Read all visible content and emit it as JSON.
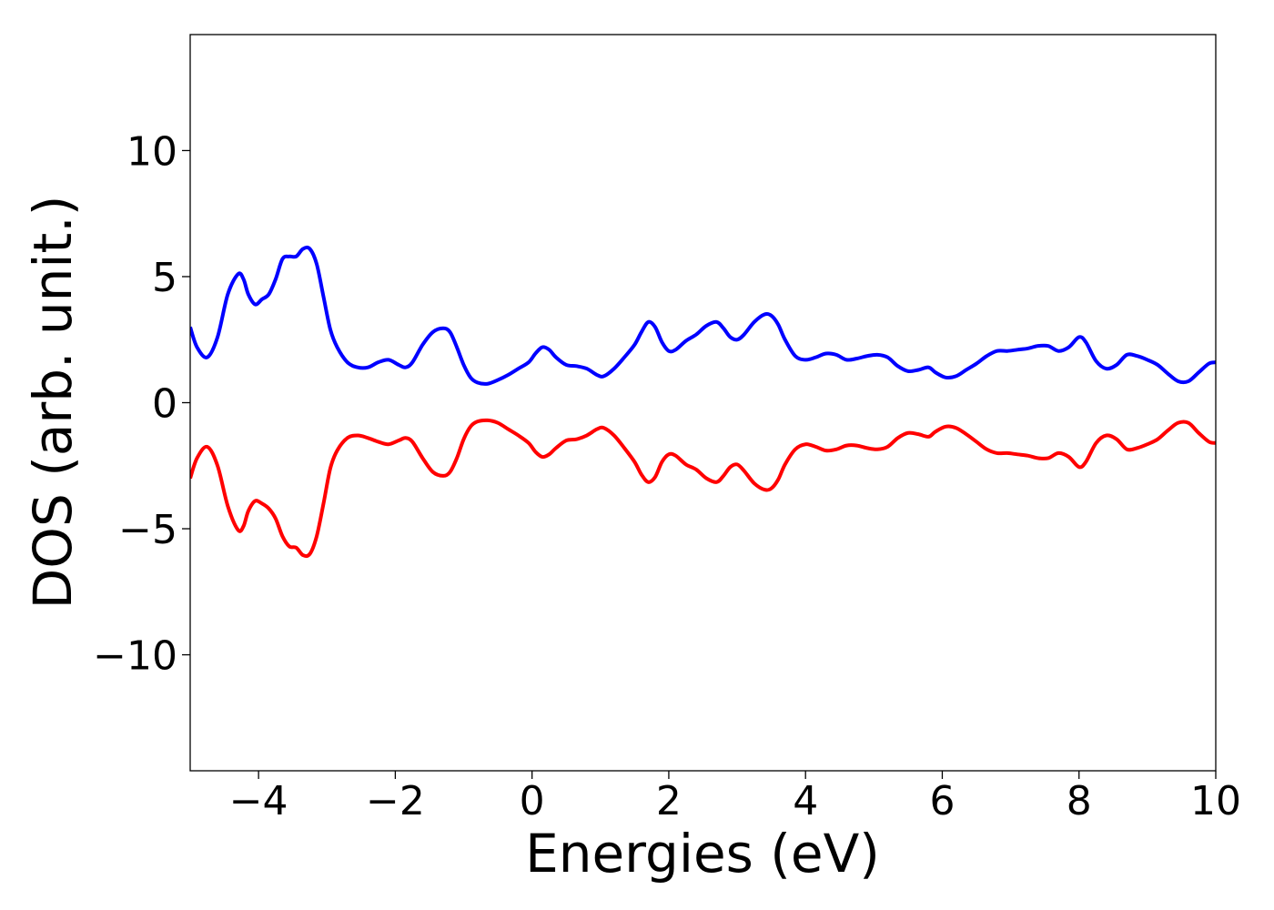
{
  "chart_data": {
    "type": "line",
    "title": "",
    "xlabel": "Energies (eV)",
    "ylabel": "DOS (arb. unit.)",
    "xlim": [
      -5,
      10
    ],
    "ylim": [
      -14.6,
      14.6
    ],
    "xticks": [
      -4,
      -2,
      0,
      2,
      4,
      6,
      8,
      10
    ],
    "xtick_labels": [
      "−4",
      "−2",
      "0",
      "2",
      "4",
      "6",
      "8",
      "10"
    ],
    "yticks": [
      -10,
      -5,
      0,
      5,
      10
    ],
    "ytick_labels": [
      "−10",
      "−5",
      "0",
      "5",
      "10"
    ],
    "grid": false,
    "legend": false,
    "series": [
      {
        "color": "#0000ff",
        "x": [
          -5.0,
          -4.9,
          -4.75,
          -4.6,
          -4.45,
          -4.3,
          -4.22,
          -4.15,
          -4.05,
          -3.95,
          -3.85,
          -3.75,
          -3.65,
          -3.55,
          -3.45,
          -3.35,
          -3.25,
          -3.15,
          -3.05,
          -2.95,
          -2.85,
          -2.7,
          -2.55,
          -2.4,
          -2.25,
          -2.1,
          -1.95,
          -1.85,
          -1.75,
          -1.6,
          -1.45,
          -1.3,
          -1.2,
          -1.1,
          -1.0,
          -0.9,
          -0.8,
          -0.65,
          -0.5,
          -0.35,
          -0.2,
          -0.05,
          0.05,
          0.15,
          0.25,
          0.35,
          0.5,
          0.65,
          0.8,
          0.95,
          1.05,
          1.2,
          1.35,
          1.5,
          1.6,
          1.7,
          1.8,
          1.9,
          2.0,
          2.1,
          2.25,
          2.4,
          2.55,
          2.7,
          2.8,
          2.9,
          3.0,
          3.1,
          3.25,
          3.4,
          3.5,
          3.6,
          3.7,
          3.85,
          4.0,
          4.15,
          4.3,
          4.45,
          4.6,
          4.75,
          4.9,
          5.05,
          5.2,
          5.35,
          5.5,
          5.65,
          5.8,
          5.9,
          6.05,
          6.2,
          6.35,
          6.5,
          6.65,
          6.8,
          6.95,
          7.1,
          7.25,
          7.4,
          7.55,
          7.7,
          7.85,
          8.0,
          8.1,
          8.25,
          8.4,
          8.55,
          8.7,
          8.85,
          9.0,
          9.15,
          9.3,
          9.45,
          9.6,
          9.75,
          9.9,
          10.0
        ],
        "y": [
          3.0,
          2.2,
          1.8,
          2.6,
          4.3,
          5.1,
          4.9,
          4.3,
          3.9,
          4.1,
          4.3,
          4.9,
          5.7,
          5.8,
          5.8,
          6.1,
          6.1,
          5.5,
          4.2,
          2.9,
          2.2,
          1.6,
          1.4,
          1.4,
          1.6,
          1.7,
          1.5,
          1.4,
          1.6,
          2.3,
          2.8,
          2.95,
          2.8,
          2.2,
          1.5,
          1.0,
          0.8,
          0.75,
          0.9,
          1.1,
          1.35,
          1.6,
          1.95,
          2.2,
          2.1,
          1.8,
          1.5,
          1.45,
          1.35,
          1.1,
          1.05,
          1.35,
          1.8,
          2.3,
          2.8,
          3.2,
          3.0,
          2.4,
          2.05,
          2.1,
          2.45,
          2.7,
          3.05,
          3.2,
          2.95,
          2.6,
          2.5,
          2.7,
          3.2,
          3.5,
          3.45,
          3.1,
          2.5,
          1.85,
          1.7,
          1.8,
          1.95,
          1.9,
          1.7,
          1.75,
          1.85,
          1.9,
          1.8,
          1.45,
          1.25,
          1.3,
          1.4,
          1.2,
          1.0,
          1.05,
          1.3,
          1.55,
          1.85,
          2.05,
          2.05,
          2.1,
          2.15,
          2.25,
          2.25,
          2.05,
          2.2,
          2.6,
          2.4,
          1.65,
          1.35,
          1.5,
          1.9,
          1.85,
          1.7,
          1.5,
          1.15,
          0.85,
          0.85,
          1.2,
          1.55,
          1.6
        ]
      },
      {
        "color": "#ff0000",
        "x": [
          -5.0,
          -4.9,
          -4.75,
          -4.6,
          -4.45,
          -4.3,
          -4.22,
          -4.15,
          -4.05,
          -3.95,
          -3.85,
          -3.75,
          -3.65,
          -3.55,
          -3.45,
          -3.35,
          -3.25,
          -3.15,
          -3.05,
          -2.95,
          -2.85,
          -2.7,
          -2.55,
          -2.4,
          -2.25,
          -2.1,
          -1.95,
          -1.85,
          -1.75,
          -1.6,
          -1.45,
          -1.3,
          -1.2,
          -1.1,
          -1.0,
          -0.9,
          -0.8,
          -0.65,
          -0.5,
          -0.35,
          -0.2,
          -0.05,
          0.05,
          0.15,
          0.25,
          0.35,
          0.5,
          0.65,
          0.8,
          0.95,
          1.05,
          1.2,
          1.35,
          1.5,
          1.6,
          1.7,
          1.8,
          1.9,
          2.0,
          2.1,
          2.25,
          2.4,
          2.55,
          2.7,
          2.8,
          2.9,
          3.0,
          3.1,
          3.25,
          3.4,
          3.5,
          3.6,
          3.7,
          3.85,
          4.0,
          4.15,
          4.3,
          4.45,
          4.6,
          4.75,
          4.9,
          5.05,
          5.2,
          5.35,
          5.5,
          5.65,
          5.8,
          5.9,
          6.05,
          6.2,
          6.35,
          6.5,
          6.65,
          6.8,
          6.95,
          7.1,
          7.25,
          7.4,
          7.55,
          7.7,
          7.85,
          8.0,
          8.1,
          8.25,
          8.4,
          8.55,
          8.7,
          8.85,
          9.0,
          9.15,
          9.3,
          9.45,
          9.6,
          9.75,
          9.9,
          10.0
        ],
        "y": [
          -3.0,
          -2.2,
          -1.75,
          -2.5,
          -4.1,
          -5.05,
          -4.9,
          -4.3,
          -3.9,
          -4.0,
          -4.2,
          -4.6,
          -5.3,
          -5.7,
          -5.75,
          -6.05,
          -6.0,
          -5.3,
          -4.0,
          -2.6,
          -1.9,
          -1.4,
          -1.3,
          -1.4,
          -1.55,
          -1.65,
          -1.5,
          -1.4,
          -1.55,
          -2.2,
          -2.75,
          -2.9,
          -2.75,
          -2.2,
          -1.45,
          -0.95,
          -0.75,
          -0.7,
          -0.8,
          -1.05,
          -1.3,
          -1.6,
          -1.95,
          -2.15,
          -2.05,
          -1.8,
          -1.5,
          -1.45,
          -1.3,
          -1.05,
          -1.0,
          -1.3,
          -1.8,
          -2.35,
          -2.85,
          -3.15,
          -2.95,
          -2.35,
          -2.05,
          -2.1,
          -2.45,
          -2.65,
          -3.0,
          -3.15,
          -2.9,
          -2.55,
          -2.45,
          -2.7,
          -3.2,
          -3.45,
          -3.4,
          -3.05,
          -2.45,
          -1.85,
          -1.65,
          -1.75,
          -1.9,
          -1.85,
          -1.7,
          -1.7,
          -1.8,
          -1.85,
          -1.75,
          -1.4,
          -1.2,
          -1.25,
          -1.35,
          -1.15,
          -0.95,
          -1.0,
          -1.25,
          -1.55,
          -1.85,
          -2.0,
          -2.0,
          -2.05,
          -2.1,
          -2.2,
          -2.2,
          -2.0,
          -2.15,
          -2.55,
          -2.35,
          -1.6,
          -1.3,
          -1.45,
          -1.85,
          -1.8,
          -1.65,
          -1.45,
          -1.1,
          -0.8,
          -0.8,
          -1.2,
          -1.55,
          -1.6
        ]
      }
    ]
  }
}
